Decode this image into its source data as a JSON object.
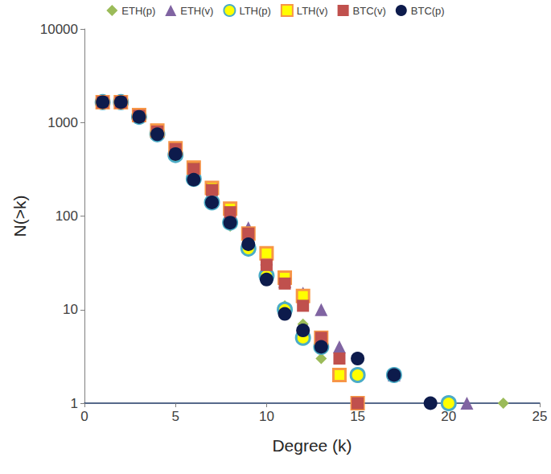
{
  "chart_data": {
    "type": "scatter",
    "x_label": "Degree (k)",
    "y_label": "N(>k)",
    "xlim": [
      0,
      25
    ],
    "xticks": [
      0,
      5,
      10,
      15,
      20,
      25
    ],
    "ylim": [
      1,
      10000
    ],
    "yticks": [
      1,
      10,
      100,
      1000,
      10000
    ],
    "log": "y",
    "grid": false,
    "legend": "top",
    "series": [
      {
        "name": "ETH(p)",
        "color": "#9bbb59",
        "marker": "diamond",
        "x": [
          1,
          2,
          3,
          4,
          5,
          6,
          7,
          8,
          9,
          10,
          11,
          12,
          13,
          15,
          17,
          23
        ],
        "values": [
          1650,
          1650,
          1150,
          760,
          460,
          250,
          140,
          78,
          42,
          22,
          11,
          7,
          3,
          2,
          2,
          1
        ]
      },
      {
        "name": "ETH(v)",
        "color": "#8064a2",
        "marker": "triangle",
        "x": [
          1,
          2,
          3,
          4,
          5,
          6,
          7,
          8,
          9,
          10,
          11,
          12,
          13,
          14,
          17,
          21
        ],
        "values": [
          1650,
          1650,
          1180,
          790,
          500,
          300,
          180,
          105,
          75,
          35,
          20,
          15,
          10,
          4,
          2,
          1
        ]
      },
      {
        "name": "LTH(p)",
        "color": "#ffff00",
        "marker": "circle",
        "x": [
          1,
          2,
          3,
          4,
          5,
          6,
          7,
          8,
          9,
          10,
          11,
          12,
          13,
          15,
          17,
          20
        ],
        "values": [
          1650,
          1650,
          1150,
          750,
          450,
          250,
          140,
          85,
          45,
          23,
          10,
          5,
          4,
          2,
          2,
          1
        ]
      },
      {
        "name": "LTH(v)",
        "color": "#ffff00",
        "marker": "square",
        "x": [
          1,
          2,
          3,
          4,
          5,
          6,
          7,
          8,
          9,
          10,
          11,
          12,
          13,
          14,
          15
        ],
        "values": [
          1650,
          1650,
          1200,
          820,
          530,
          330,
          200,
          120,
          65,
          40,
          22,
          14,
          5,
          2,
          1
        ]
      },
      {
        "name": "BTC(v)",
        "color": "#c0504d",
        "marker": "square",
        "x": [
          1,
          2,
          3,
          4,
          5,
          6,
          7,
          8,
          9,
          10,
          11,
          12,
          13,
          14,
          15
        ],
        "values": [
          1650,
          1650,
          1180,
          800,
          520,
          320,
          190,
          110,
          65,
          30,
          19,
          11,
          5,
          3,
          1
        ]
      },
      {
        "name": "BTC(p)",
        "color": "#0d1b4c",
        "marker": "circle",
        "x": [
          1,
          2,
          3,
          4,
          5,
          6,
          7,
          8,
          9,
          10,
          11,
          12,
          13,
          15,
          17,
          19
        ],
        "values": [
          1650,
          1650,
          1150,
          750,
          460,
          245,
          140,
          85,
          50,
          21,
          9,
          6,
          4,
          3,
          2,
          1
        ]
      }
    ]
  }
}
